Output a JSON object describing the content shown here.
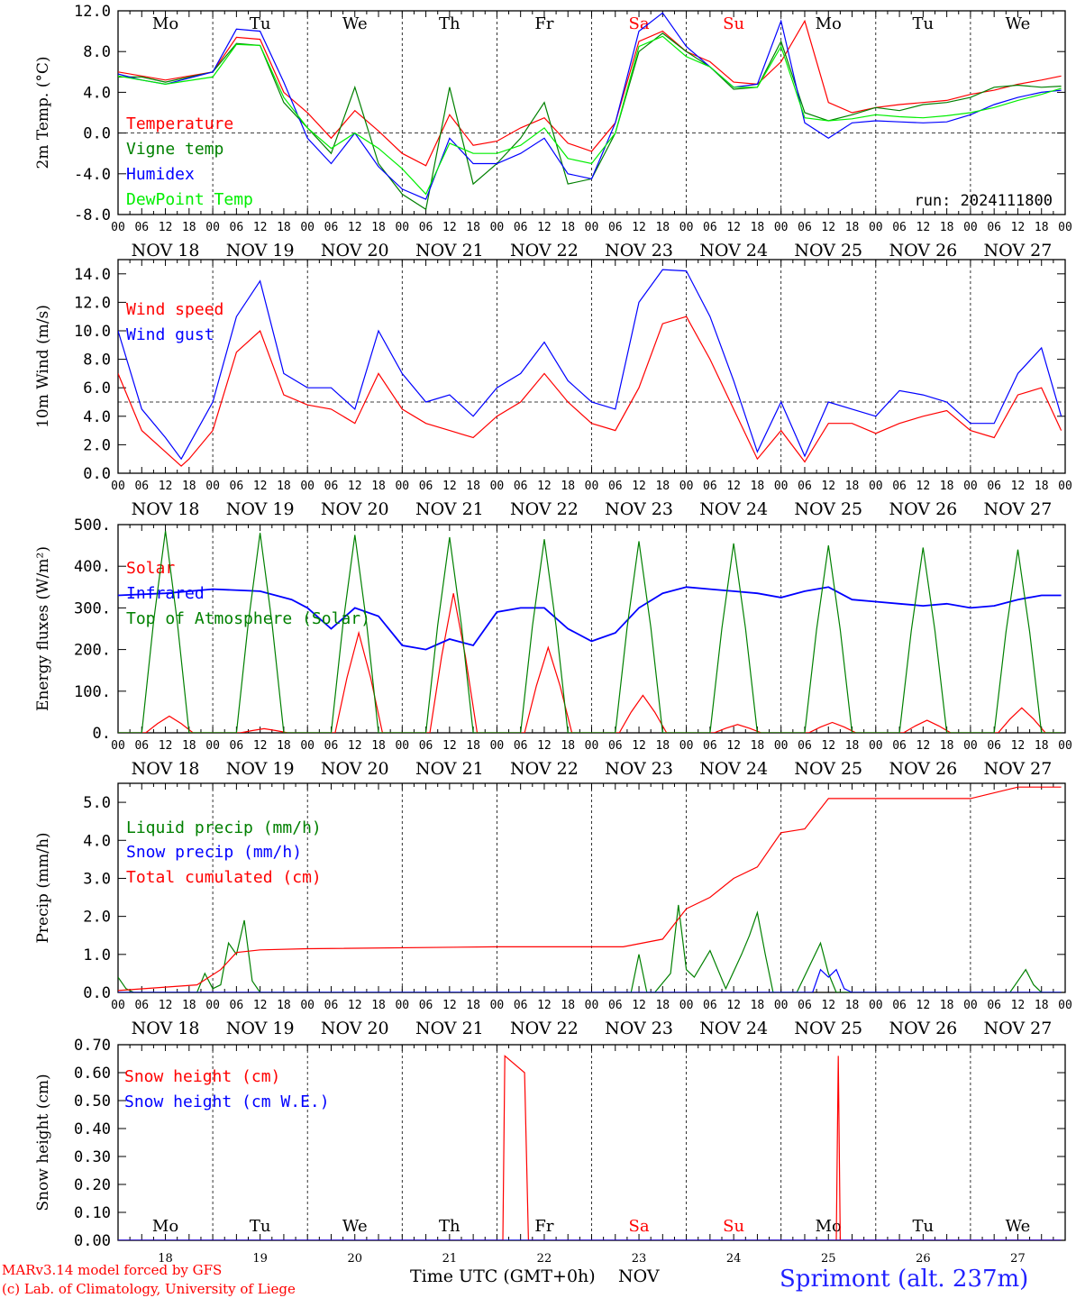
{
  "chart_data": [
    {
      "type": "line",
      "ylabel": "2m Temp. (°C)",
      "ylim": [
        -8,
        12
      ],
      "yticks": [
        "12.0",
        "8.0",
        "4.0",
        "0.0",
        "-4.0",
        "-8.0"
      ],
      "yticks_values": [
        12,
        8,
        4,
        0,
        -4,
        -8
      ],
      "dashed_reference": 0,
      "annotation": "run: 2024111800",
      "day_abbrev": [
        "Mo",
        "Tu",
        "We",
        "Th",
        "Fr",
        "Sa",
        "Su",
        "Mo",
        "Tu",
        "We"
      ],
      "series": [
        {
          "name": "Temperature",
          "color": "#ff0000",
          "hours": [
            0,
            12,
            24,
            30,
            36,
            42,
            48,
            54,
            60,
            66,
            72,
            78,
            84,
            90,
            96,
            102,
            108,
            114,
            120,
            126,
            132,
            138,
            144,
            150,
            156,
            162,
            168,
            174,
            180,
            186,
            192,
            198,
            204,
            210,
            216,
            222,
            228,
            234,
            239
          ],
          "values": [
            6,
            5.2,
            6,
            9.4,
            9.2,
            4,
            2,
            -0.5,
            2.2,
            0.2,
            -2,
            -3.2,
            1.8,
            -1.2,
            -0.8,
            0.5,
            1.5,
            -1,
            -1.8,
            1,
            9,
            10,
            8,
            7,
            5,
            4.8,
            7,
            11,
            3,
            2,
            2.5,
            2.8,
            3,
            3.2,
            3.8,
            4.2,
            4.8,
            5.2,
            5.6
          ]
        },
        {
          "name": "Vigne temp",
          "color": "#008000",
          "hours": [
            0,
            6,
            12,
            24,
            30,
            36,
            42,
            48,
            54,
            60,
            66,
            72,
            78,
            84,
            90,
            96,
            102,
            108,
            114,
            120,
            126,
            132,
            138,
            144,
            150,
            156,
            162,
            168,
            174,
            180,
            186,
            192,
            198,
            204,
            210,
            216,
            222,
            228,
            234,
            239
          ],
          "values": [
            5.5,
            5.5,
            5,
            6,
            8.8,
            8.6,
            3,
            0.5,
            -2,
            4.5,
            -3,
            -6,
            -7.5,
            4.5,
            -5,
            -3,
            -0.5,
            3,
            -5,
            -4.5,
            0,
            8,
            9.8,
            8,
            6.5,
            4.3,
            4.5,
            9,
            2,
            1.2,
            1.8,
            2.5,
            2.2,
            2.8,
            3,
            3.5,
            4.5,
            4.7,
            4.5,
            4.6
          ]
        },
        {
          "name": "Humidex",
          "color": "#0000ff",
          "hours": [
            0,
            6,
            12,
            24,
            30,
            36,
            42,
            48,
            54,
            60,
            66,
            72,
            78,
            84,
            90,
            96,
            102,
            108,
            114,
            120,
            126,
            132,
            138,
            144,
            150,
            156,
            162,
            168,
            174,
            180,
            186,
            192,
            198,
            204,
            210,
            216,
            222,
            228,
            234,
            239
          ],
          "values": [
            5.8,
            5.2,
            4.8,
            6,
            10.2,
            10,
            5,
            -0.5,
            -3,
            0,
            -3.3,
            -5.5,
            -6.5,
            -0.5,
            -3,
            -3,
            -2,
            -0.5,
            -4,
            -4.5,
            1,
            10,
            11.8,
            8.5,
            6.5,
            4.5,
            4.8,
            11,
            1,
            -0.5,
            1,
            1.2,
            1.1,
            1,
            1.1,
            1.8,
            2.8,
            3.5,
            4,
            4.2
          ]
        },
        {
          "name": "DewPoint Temp",
          "color": "#00ee00",
          "hours": [
            0,
            12,
            24,
            30,
            36,
            42,
            48,
            54,
            60,
            66,
            72,
            78,
            84,
            90,
            96,
            102,
            108,
            114,
            120,
            126,
            132,
            138,
            144,
            150,
            156,
            162,
            168,
            174,
            180,
            186,
            192,
            198,
            204,
            210,
            216,
            222,
            228,
            234,
            239
          ],
          "values": [
            5.6,
            4.8,
            5.5,
            8.7,
            8.6,
            3.5,
            0.5,
            -1.5,
            0,
            -1.5,
            -3.5,
            -6,
            -1,
            -2,
            -2,
            -1.2,
            0.5,
            -2.5,
            -3,
            0,
            8.5,
            9.5,
            7.5,
            6.5,
            4.5,
            4.5,
            8.5,
            1.5,
            1.2,
            1.4,
            1.8,
            1.6,
            1.5,
            1.7,
            2,
            2.5,
            3.2,
            3.8,
            4.4
          ]
        }
      ]
    },
    {
      "type": "line",
      "ylabel": "10m Wind (m/s)",
      "ylim": [
        0,
        15
      ],
      "yticks": [
        "14.0",
        "12.0",
        "10.0",
        "8.0",
        "6.0",
        "4.0",
        "2.0",
        "0.0"
      ],
      "yticks_values": [
        14,
        12,
        10,
        8,
        6,
        4,
        2,
        0
      ],
      "dashed_reference": 5,
      "series": [
        {
          "name": "Wind speed",
          "color": "#ff0000",
          "hours": [
            0,
            6,
            12,
            16,
            18,
            24,
            30,
            36,
            42,
            48,
            54,
            60,
            66,
            72,
            78,
            84,
            90,
            96,
            102,
            108,
            114,
            120,
            126,
            132,
            138,
            144,
            150,
            156,
            162,
            168,
            174,
            180,
            186,
            192,
            198,
            204,
            210,
            216,
            222,
            228,
            234,
            239
          ],
          "values": [
            7,
            3,
            1.5,
            0.5,
            1,
            3,
            8.5,
            10,
            5.5,
            4.8,
            4.5,
            3.5,
            7,
            4.5,
            3.5,
            3,
            2.5,
            4,
            5,
            7,
            5,
            3.5,
            3,
            6,
            10.5,
            11,
            8,
            4.5,
            1,
            3,
            0.8,
            3.5,
            3.5,
            2.8,
            3.5,
            4,
            4.4,
            3,
            2.5,
            5.5,
            6,
            3
          ]
        },
        {
          "name": "Wind gust",
          "color": "#0000ff",
          "hours": [
            0,
            6,
            12,
            16,
            18,
            24,
            30,
            36,
            42,
            48,
            54,
            60,
            66,
            72,
            78,
            84,
            90,
            96,
            102,
            108,
            114,
            120,
            126,
            132,
            138,
            144,
            150,
            156,
            162,
            168,
            174,
            180,
            186,
            192,
            198,
            204,
            210,
            216,
            222,
            228,
            234,
            239
          ],
          "values": [
            10,
            4.5,
            2.5,
            1,
            2,
            5,
            11,
            13.5,
            7,
            6,
            6,
            4.5,
            10,
            7,
            5,
            5.5,
            4,
            6,
            7,
            9.2,
            6.5,
            5,
            4.5,
            12,
            14.3,
            14.2,
            11,
            6.5,
            1.5,
            5,
            1.2,
            5,
            4.5,
            4,
            5.8,
            5.5,
            5,
            3.5,
            3.5,
            7,
            8.8,
            4
          ]
        }
      ]
    },
    {
      "type": "line",
      "ylabel": "Energy fluxes (W/m²)",
      "ylim": [
        0,
        500
      ],
      "yticks": [
        "500.",
        "400.",
        "300.",
        "200.",
        "100.",
        "0."
      ],
      "yticks_values": [
        500,
        400,
        300,
        200,
        100,
        0
      ],
      "series": [
        {
          "name": "Solar",
          "color": "#ff0000",
          "peaks_hour": [
            13,
            37,
            61,
            85,
            109,
            133,
            157,
            181,
            205,
            229
          ],
          "peaks_value": [
            40,
            10,
            240,
            335,
            205,
            90,
            20,
            25,
            30,
            60
          ]
        },
        {
          "name": "Infrared",
          "color": "#0000ff",
          "hours": [
            0,
            12,
            24,
            36,
            44,
            48,
            54,
            60,
            66,
            72,
            78,
            84,
            90,
            96,
            102,
            108,
            114,
            120,
            126,
            132,
            138,
            144,
            150,
            156,
            162,
            168,
            174,
            180,
            186,
            192,
            198,
            204,
            210,
            216,
            222,
            228,
            234,
            239
          ],
          "values": [
            330,
            335,
            345,
            340,
            320,
            300,
            250,
            300,
            280,
            210,
            200,
            225,
            210,
            290,
            300,
            300,
            250,
            220,
            240,
            300,
            335,
            350,
            345,
            340,
            335,
            325,
            340,
            350,
            320,
            315,
            310,
            305,
            310,
            300,
            305,
            320,
            330,
            330
          ]
        },
        {
          "name": "Top of Atmosphere (Solar)",
          "color": "#008000",
          "peaks_hour": [
            12,
            36,
            60,
            84,
            108,
            132,
            156,
            180,
            204,
            228
          ],
          "peaks_value": [
            485,
            480,
            475,
            470,
            465,
            460,
            455,
            450,
            445,
            440
          ]
        }
      ]
    },
    {
      "type": "line",
      "ylabel": "Precip (mm/h)",
      "ylim": [
        0,
        5.5
      ],
      "yticks": [
        "5.0",
        "4.0",
        "3.0",
        "2.0",
        "1.0",
        "0.0"
      ],
      "yticks_values": [
        5,
        4,
        3,
        2,
        1,
        0
      ],
      "series": [
        {
          "name": "Liquid precip (mm/h)",
          "color": "#008000",
          "hours": [
            0,
            2,
            4,
            20,
            22,
            24,
            26,
            28,
            30,
            32,
            34,
            36,
            38,
            40,
            128,
            130,
            132,
            134,
            136,
            140,
            142,
            144,
            146,
            150,
            154,
            158,
            160,
            162,
            164,
            166,
            168,
            170,
            172,
            178,
            180,
            182,
            184,
            186,
            188,
            226,
            228,
            230,
            232,
            234,
            239
          ],
          "values": [
            0.4,
            0.1,
            0,
            0,
            0.5,
            0.1,
            0.2,
            1.3,
            1,
            1.9,
            0.3,
            0,
            0,
            0,
            0,
            0,
            1,
            0,
            0,
            0.5,
            2.3,
            0.6,
            0.4,
            1.1,
            0.1,
            1,
            1.5,
            2.1,
            1,
            0,
            0,
            0,
            0,
            1.3,
            0.5,
            0,
            0,
            0,
            0,
            0,
            0.3,
            0.6,
            0.2,
            0,
            0
          ]
        },
        {
          "name": "Snow precip (mm/h)",
          "color": "#0000ff",
          "hours": [
            0,
            176,
            178,
            180,
            182,
            184,
            186,
            239
          ],
          "values": [
            0,
            0,
            0.6,
            0.4,
            0.6,
            0.1,
            0,
            0
          ]
        },
        {
          "name": "Total cumulated (cm)",
          "color": "#ff0000",
          "hours": [
            0,
            20,
            26,
            30,
            36,
            48,
            96,
            128,
            138,
            144,
            150,
            156,
            162,
            168,
            174,
            180,
            192,
            204,
            216,
            228,
            239
          ],
          "values": [
            0.05,
            0.2,
            0.6,
            1.05,
            1.12,
            1.15,
            1.2,
            1.2,
            1.4,
            2.2,
            2.5,
            3,
            3.3,
            4.2,
            4.3,
            5.1,
            5.1,
            5.1,
            5.1,
            5.4,
            5.4
          ]
        }
      ]
    },
    {
      "type": "line",
      "ylabel": "Snow height (cm)",
      "ylim": [
        0,
        0.7
      ],
      "yticks": [
        "0.70",
        "0.60",
        "0.50",
        "0.40",
        "0.30",
        "0.20",
        "0.10",
        "0.00"
      ],
      "yticks_values": [
        0.7,
        0.6,
        0.5,
        0.4,
        0.3,
        0.2,
        0.1,
        0
      ],
      "day_abbrev": [
        "Mo",
        "Tu",
        "We",
        "Th",
        "Fr",
        "Sa",
        "Su",
        "Mo",
        "Tu",
        "We"
      ],
      "day_numbers": [
        "18",
        "19",
        "20",
        "21",
        "22",
        "23",
        "24",
        "25",
        "26",
        "27"
      ],
      "series": [
        {
          "name": "Snow height (cm)",
          "color": "#ff0000",
          "hours": [
            0,
            97.5,
            98,
            103,
            104,
            109,
            239
          ],
          "values": [
            0,
            0,
            0.66,
            0.6,
            0,
            0,
            0
          ],
          "extra_hours": [
            182,
            182.5,
            183,
            239
          ],
          "extra_values": [
            0,
            0.66,
            0,
            0
          ]
        },
        {
          "name": "Snow height (cm W.E.)",
          "color": "#0000ff",
          "hours": [
            0,
            239
          ],
          "values": [
            0,
            0
          ]
        }
      ]
    }
  ],
  "x_axis": {
    "hour_ticks": [
      "00",
      "06",
      "12",
      "18"
    ],
    "dates": [
      "NOV 18",
      "NOV 19",
      "NOV 20",
      "NOV 21",
      "NOV 22",
      "NOV 23",
      "NOV 24",
      "NOV 25",
      "NOV 26",
      "NOV 27"
    ],
    "weekend_days": [
      "Sa",
      "Su"
    ],
    "label": "Time UTC (GMT+0h)",
    "month": "NOV"
  },
  "footer": {
    "credit_line1": "MARv3.14 model forced by GFS",
    "credit_line2": "(c) Lab. of Climatology, University of Liege",
    "station": "Sprimont (alt. 237m)"
  },
  "colors": {
    "red": "#ff0000",
    "green": "#008000",
    "blue": "#0000ff",
    "light_green": "#00ee00",
    "axis": "#000000"
  }
}
